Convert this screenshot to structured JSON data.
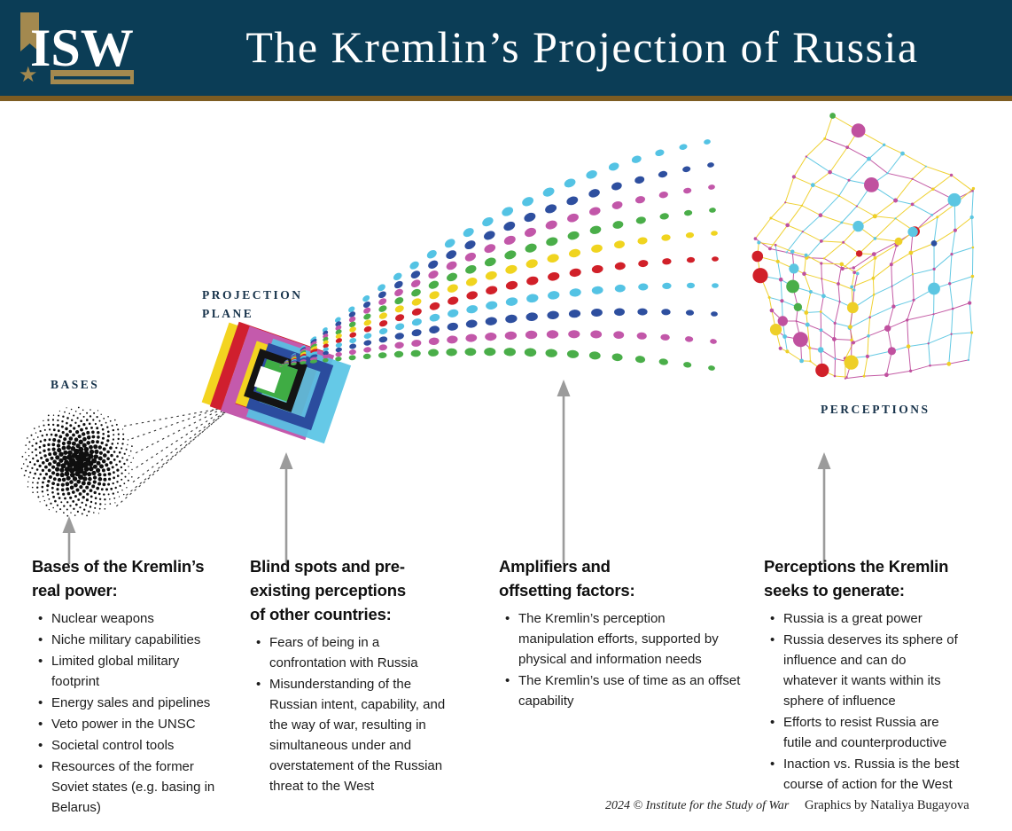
{
  "header": {
    "logo": "ISW",
    "title": "The Kremlin’s Projection of Russia",
    "bg_color": "#0b3d56",
    "gold_color": "#a3894f",
    "rule_color": "#7d5c22"
  },
  "diagram": {
    "labels": {
      "bases": "BASES",
      "projection_plane": [
        "PROJECTION",
        "PLANE"
      ],
      "perceptions": "PERCEPTIONS"
    },
    "palette": {
      "cyan": "#54c3e4",
      "blue": "#2e4f9f",
      "magenta": "#c257a9",
      "green": "#4aae49",
      "yellow": "#f0d41f",
      "red": "#d12029",
      "black": "#141414",
      "plane_yellow": "#f3d420",
      "plane_red": "#d01f2e",
      "plane_magenta": "#c45aac",
      "plane_cyan": "#54c3e4",
      "plane_blue": "#2b4c9e",
      "plane_green": "#3fac44",
      "dot_black": "#0f0f0f",
      "arrow_gray": "#9b9b9b"
    },
    "ray_colors": [
      "cyan",
      "blue",
      "magenta",
      "green",
      "yellow",
      "red",
      "cyan",
      "blue",
      "magenta",
      "green"
    ],
    "network_line_colors": [
      "#5cc6e2",
      "#eecf28",
      "#c0519f"
    ],
    "network_node_colors": [
      "#4aae49",
      "#2e4f9f",
      "#c0519f",
      "#5cc6e2",
      "#eecf28",
      "#d12029"
    ]
  },
  "columns": [
    {
      "heading": [
        "Bases of the Kremlin’s",
        "real power:"
      ],
      "bullets": [
        "Nuclear weapons",
        "Niche military capabilities",
        "Limited global military footprint",
        "Energy sales and pipelines",
        "Veto power in the UNSC",
        "Societal control tools",
        "Resources of the former Soviet states (e.g. basing in Belarus)"
      ]
    },
    {
      "heading": [
        "Blind spots and pre-",
        "existing perceptions",
        "of other countries:"
      ],
      "bullets": [
        "Fears of being in a confrontation with Russia",
        "Misunderstanding of the Russian intent, capability, and the way of war, resulting in simultaneous under and overstatement of the Russian threat to the West"
      ]
    },
    {
      "heading": [
        "Amplifiers and",
        "offsetting factors:"
      ],
      "bullets": [
        "The Kremlin’s perception manipulation efforts, supported by physical and information needs",
        "The Kremlin’s use of time as an offset capability"
      ]
    },
    {
      "heading": [
        "Perceptions the Kremlin",
        "seeks to generate:"
      ],
      "bullets": [
        "Russia is a great power",
        "Russia deserves its sphere of influence and can do whatever it wants within its sphere of influence",
        "Efforts to resist Russia are futile and counterproductive",
        "Inaction vs. Russia is the best course of action for the West"
      ]
    }
  ],
  "footer": {
    "copyright": "2024 © Institute for the Study of War",
    "credit": "Graphics by Nataliya Bugayova"
  }
}
